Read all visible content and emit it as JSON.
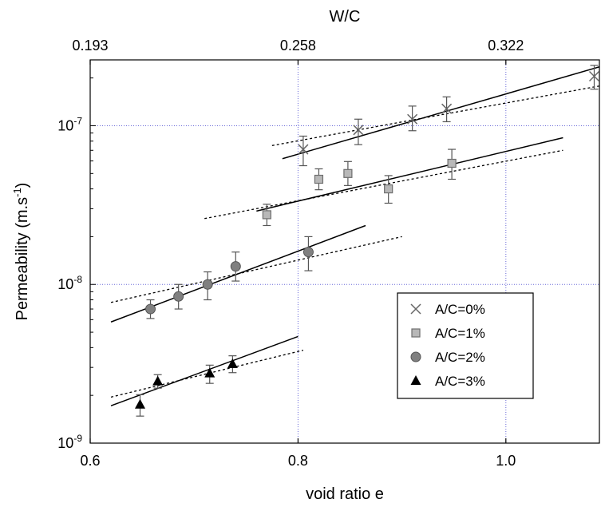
{
  "chart_data": {
    "type": "scatter",
    "title": "",
    "xlabel": "void ratio e",
    "ylabel": "Permeability (m.s-1)",
    "ylabel_parts": {
      "main": "Permeability (m.s",
      "sup": "-1",
      "close": ")"
    },
    "top_axis_label": "W/C",
    "xlim": [
      0.6,
      1.09
    ],
    "ylim": [
      1e-09,
      2.6e-07
    ],
    "y_scale": "log",
    "grid": "dotted, at x ticks and y decades",
    "x_ticks": [
      0.6,
      0.8,
      1.0
    ],
    "x_tick_labels": [
      "0.6",
      "0.8",
      "1.0"
    ],
    "y_ticks": [
      1e-09,
      1e-08,
      1e-07
    ],
    "y_tick_labels": [
      {
        "base": "10",
        "exp": "-9"
      },
      {
        "base": "10",
        "exp": "-8"
      },
      {
        "base": "10",
        "exp": "-7"
      }
    ],
    "top_ticks": [
      {
        "label": "0.193",
        "e": 0.6
      },
      {
        "label": "0.258",
        "e": 0.8
      },
      {
        "label": "0.322",
        "e": 1.0
      }
    ],
    "legend_position": "lower-right",
    "series": [
      {
        "name": "A/C=0%",
        "marker": "x",
        "color": "#666666",
        "points": [
          {
            "x": 0.805,
            "y": 7.1e-08,
            "lo": 5.6e-08,
            "hi": 8.6e-08
          },
          {
            "x": 0.858,
            "y": 9.4e-08,
            "lo": 7.6e-08,
            "hi": 1.1e-07
          },
          {
            "x": 0.91,
            "y": 1.1e-07,
            "lo": 9.3e-08,
            "hi": 1.33e-07
          },
          {
            "x": 0.943,
            "y": 1.28e-07,
            "lo": 1.06e-07,
            "hi": 1.52e-07
          },
          {
            "x": 1.085,
            "y": 2.05e-07,
            "lo": 1.7e-07,
            "hi": 2.4e-07
          }
        ],
        "fit_solid": [
          [
            0.785,
            6.2e-08
          ],
          [
            1.09,
            2.35e-07
          ]
        ],
        "fit_dotted": [
          [
            0.775,
            7.5e-08
          ],
          [
            1.09,
            1.78e-07
          ]
        ]
      },
      {
        "name": "A/C=1%",
        "marker": "square",
        "color": "#999999",
        "points": [
          {
            "x": 0.77,
            "y": 2.75e-08,
            "lo": 2.35e-08,
            "hi": 3.2e-08
          },
          {
            "x": 0.82,
            "y": 4.6e-08,
            "lo": 3.95e-08,
            "hi": 5.35e-08
          },
          {
            "x": 0.848,
            "y": 5e-08,
            "lo": 4.2e-08,
            "hi": 5.95e-08
          },
          {
            "x": 0.887,
            "y": 4e-08,
            "lo": 3.25e-08,
            "hi": 4.85e-08
          },
          {
            "x": 0.948,
            "y": 5.8e-08,
            "lo": 4.6e-08,
            "hi": 7.1e-08
          }
        ],
        "fit_solid": [
          [
            0.76,
            2.9e-08
          ],
          [
            1.055,
            8.4e-08
          ]
        ],
        "fit_dotted": [
          [
            0.71,
            2.6e-08
          ],
          [
            1.055,
            7e-08
          ]
        ]
      },
      {
        "name": "A/C=2%",
        "marker": "circle",
        "color": "#777777",
        "points": [
          {
            "x": 0.658,
            "y": 7e-09,
            "lo": 6.1e-09,
            "hi": 8e-09
          },
          {
            "x": 0.685,
            "y": 8.4e-09,
            "lo": 7e-09,
            "hi": 1e-08
          },
          {
            "x": 0.713,
            "y": 1e-08,
            "lo": 8e-09,
            "hi": 1.2e-08
          },
          {
            "x": 0.74,
            "y": 1.3e-08,
            "lo": 1.05e-08,
            "hi": 1.6e-08
          },
          {
            "x": 0.81,
            "y": 1.6e-08,
            "lo": 1.22e-08,
            "hi": 2e-08
          }
        ],
        "fit_solid": [
          [
            0.62,
            5.8e-09
          ],
          [
            0.865,
            2.35e-08
          ]
        ],
        "fit_dotted": [
          [
            0.62,
            7.7e-09
          ],
          [
            0.9,
            2e-08
          ]
        ]
      },
      {
        "name": "A/C=3%",
        "marker": "triangle",
        "color": "#000000",
        "points": [
          {
            "x": 0.648,
            "y": 1.75e-09,
            "lo": 1.48e-09,
            "hi": 2.02e-09
          },
          {
            "x": 0.665,
            "y": 2.45e-09,
            "lo": 2.22e-09,
            "hi": 2.7e-09
          },
          {
            "x": 0.715,
            "y": 2.75e-09,
            "lo": 2.38e-09,
            "hi": 3.1e-09
          },
          {
            "x": 0.737,
            "y": 3.15e-09,
            "lo": 2.78e-09,
            "hi": 3.55e-09
          }
        ],
        "fit_solid": [
          [
            0.62,
            1.72e-09
          ],
          [
            0.8,
            4.7e-09
          ]
        ],
        "fit_dotted": [
          [
            0.62,
            1.95e-09
          ],
          [
            0.805,
            3.85e-09
          ]
        ]
      }
    ]
  }
}
